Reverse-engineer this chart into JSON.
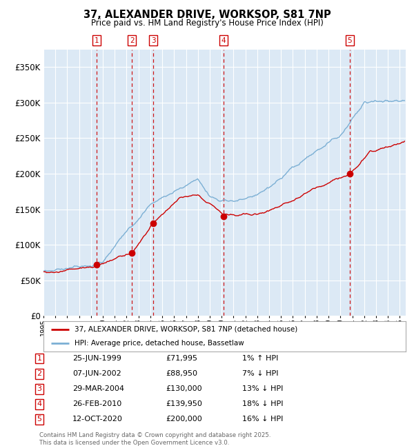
{
  "title": "37, ALEXANDER DRIVE, WORKSOP, S81 7NP",
  "subtitle": "Price paid vs. HM Land Registry's House Price Index (HPI)",
  "ylim": [
    0,
    375000
  ],
  "xlim_start": 1995.0,
  "xlim_end": 2025.5,
  "background_color": "#dce9f5",
  "grid_color": "#ffffff",
  "sales": [
    {
      "num": 1,
      "date_label": "25-JUN-1999",
      "price": 71995,
      "hpi_pct": "1% ↑ HPI",
      "year": 1999.48
    },
    {
      "num": 2,
      "date_label": "07-JUN-2002",
      "price": 88950,
      "hpi_pct": "7% ↓ HPI",
      "year": 2002.44
    },
    {
      "num": 3,
      "date_label": "29-MAR-2004",
      "price": 130000,
      "hpi_pct": "13% ↓ HPI",
      "year": 2004.24
    },
    {
      "num": 4,
      "date_label": "26-FEB-2010",
      "price": 139950,
      "hpi_pct": "18% ↓ HPI",
      "year": 2010.15
    },
    {
      "num": 5,
      "date_label": "12-OCT-2020",
      "price": 200000,
      "hpi_pct": "16% ↓ HPI",
      "year": 2020.79
    }
  ],
  "red_line_color": "#cc0000",
  "blue_line_color": "#7bafd4",
  "sale_dot_color": "#cc0000",
  "dashed_line_color": "#cc0000",
  "legend_label_red": "37, ALEXANDER DRIVE, WORKSOP, S81 7NP (detached house)",
  "legend_label_blue": "HPI: Average price, detached house, Bassetlaw",
  "footer": "Contains HM Land Registry data © Crown copyright and database right 2025.\nThis data is licensed under the Open Government Licence v3.0.",
  "yticks": [
    0,
    50000,
    100000,
    150000,
    200000,
    250000,
    300000,
    350000
  ],
  "ytick_labels": [
    "£0",
    "£50K",
    "£100K",
    "£150K",
    "£200K",
    "£250K",
    "£300K",
    "£350K"
  ]
}
